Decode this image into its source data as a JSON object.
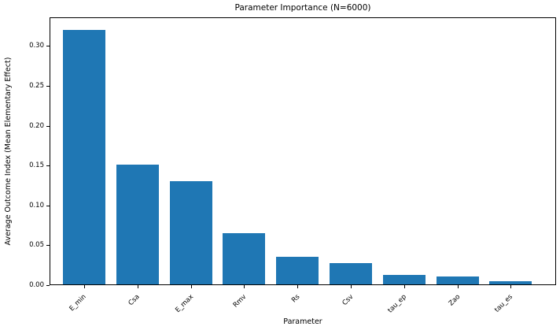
{
  "chart_data": {
    "type": "bar",
    "title": "Parameter Importance (N=6000)",
    "xlabel": "Parameter",
    "ylabel": "Average Outcome Index (Mean Elementary Effect)",
    "categories": [
      "E_min",
      "Csa",
      "E_max",
      "Rmv",
      "Rs",
      "Csv",
      "tau_ep",
      "Zao",
      "tau_es"
    ],
    "values": [
      0.32,
      0.151,
      0.13,
      0.065,
      0.036,
      0.028,
      0.013,
      0.011,
      0.005
    ],
    "bar_color": "#1f77b4",
    "background_color": "#ffffff",
    "spine_color": "#000000",
    "ylim": [
      0,
      0.336
    ],
    "yticks": [
      0.0,
      0.05,
      0.1,
      0.15,
      0.2,
      0.25,
      0.3
    ],
    "ytick_labels": [
      "0.00",
      "0.05",
      "0.10",
      "0.15",
      "0.20",
      "0.25",
      "0.30"
    ],
    "xtick_rotation_deg": 45,
    "grid": false,
    "legend": null
  }
}
